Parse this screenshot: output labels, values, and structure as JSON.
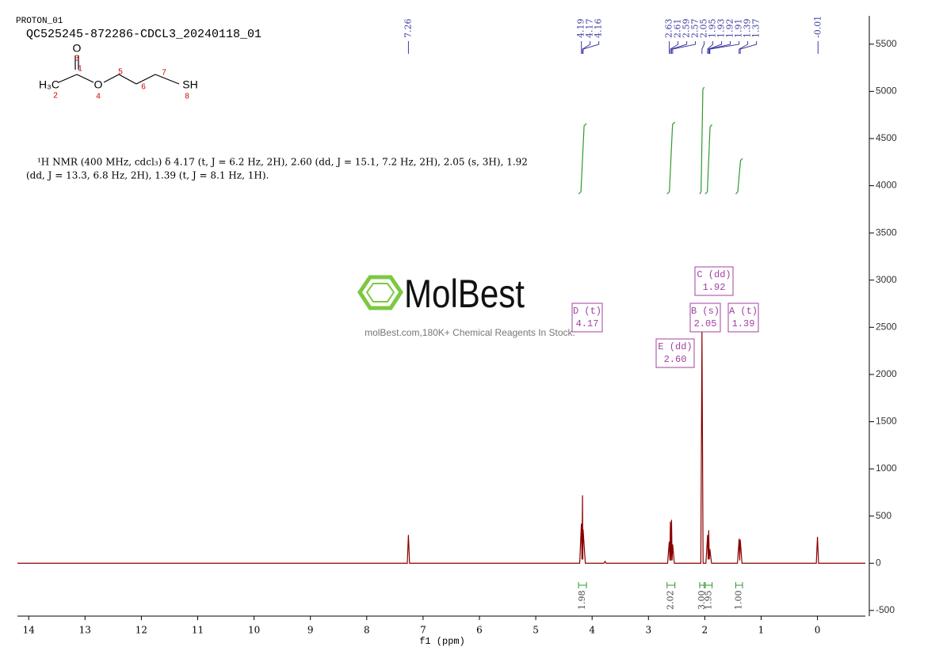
{
  "header": {
    "experiment": "PROTON_01",
    "sample": "QC525245-872286-CDCL3_20240118_01"
  },
  "structure": {
    "carbonyl_o": "O",
    "ether_o": "O",
    "methyl": "H₃C",
    "thiol": "SH",
    "atom_numbers": [
      1,
      2,
      3,
      4,
      5,
      6,
      7,
      8
    ]
  },
  "description": [
    "¹H NMR (400 MHz, cdcl₃) δ 4.17 (t, J = 6.2 Hz, 2H), 2.60 (dd, J = 15.1, 7.2 Hz, 2H), 2.05 (s, 3H), 1.92",
    "(dd, J = 13.3, 6.8 Hz, 2H), 1.39 (t, J = 8.1 Hz, 1H)."
  ],
  "watermark": {
    "brand": "MolBest",
    "tagline": "molBest.com,180K+ Chemical Reagents In Stock."
  },
  "chart_data": {
    "type": "line",
    "x_label": "f1 (ppm)",
    "xlim": [
      14.2,
      -0.85
    ],
    "xticks": [
      14,
      13,
      12,
      11,
      10,
      9,
      8,
      7,
      6,
      5,
      4,
      3,
      2,
      1,
      0
    ],
    "ylim": [
      -560,
      5800
    ],
    "yticks": [
      -500,
      0,
      500,
      1000,
      1500,
      2000,
      2500,
      3000,
      3500,
      4000,
      4500,
      5000,
      5500
    ],
    "series": [
      {
        "color": "#8b0000",
        "x": [
          14.2,
          7.28,
          7.26,
          7.24,
          4.22,
          4.19,
          4.18,
          4.17,
          4.165,
          4.16,
          4.12,
          3.79,
          3.77,
          3.75,
          2.66,
          2.63,
          2.62,
          2.61,
          2.6,
          2.59,
          2.58,
          2.57,
          2.54,
          2.07,
          2.05,
          2.03,
          1.98,
          1.95,
          1.94,
          1.93,
          1.92,
          1.91,
          1.88,
          1.42,
          1.39,
          1.38,
          1.37,
          1.34,
          0.02,
          0,
          -0.02,
          -0.85
        ],
        "values": [
          0,
          0,
          300,
          0,
          0,
          420,
          40,
          720,
          40,
          360,
          0,
          0,
          20,
          0,
          0,
          230,
          30,
          440,
          30,
          460,
          30,
          200,
          0,
          0,
          2450,
          0,
          0,
          300,
          40,
          350,
          40,
          150,
          0,
          0,
          260,
          30,
          250,
          0,
          0,
          280,
          0,
          0
        ]
      }
    ],
    "peak_labels": [
      7.26,
      4.19,
      4.17,
      4.16,
      2.63,
      2.61,
      2.59,
      2.57,
      2.05,
      1.95,
      1.93,
      1.92,
      1.91,
      1.39,
      1.37,
      -0.01
    ],
    "integrals": {
      "ranges": [
        [
          4.24,
          4.1
        ],
        [
          2.67,
          2.53
        ],
        [
          2.09,
          2.01
        ],
        [
          1.99,
          1.87
        ],
        [
          1.45,
          1.33
        ]
      ],
      "values": [
        1.98,
        2.02,
        3,
        1.95,
        1
      ],
      "value_labels": [
        "1.98",
        "2.02",
        "3.00",
        "1.95",
        "1.00"
      ],
      "color": "#2e9a2e"
    },
    "multiplets": [
      {
        "name": "D (t)",
        "shift": "4.17"
      },
      {
        "name": "E (dd)",
        "shift": "2.60"
      },
      {
        "name": "C (dd)",
        "shift": "1.92"
      },
      {
        "name": "B (s)",
        "shift": "2.05"
      },
      {
        "name": "A (t)",
        "shift": "1.39"
      }
    ],
    "multiplet_color": "#a040a0",
    "label_color": "#3a3aa0"
  }
}
